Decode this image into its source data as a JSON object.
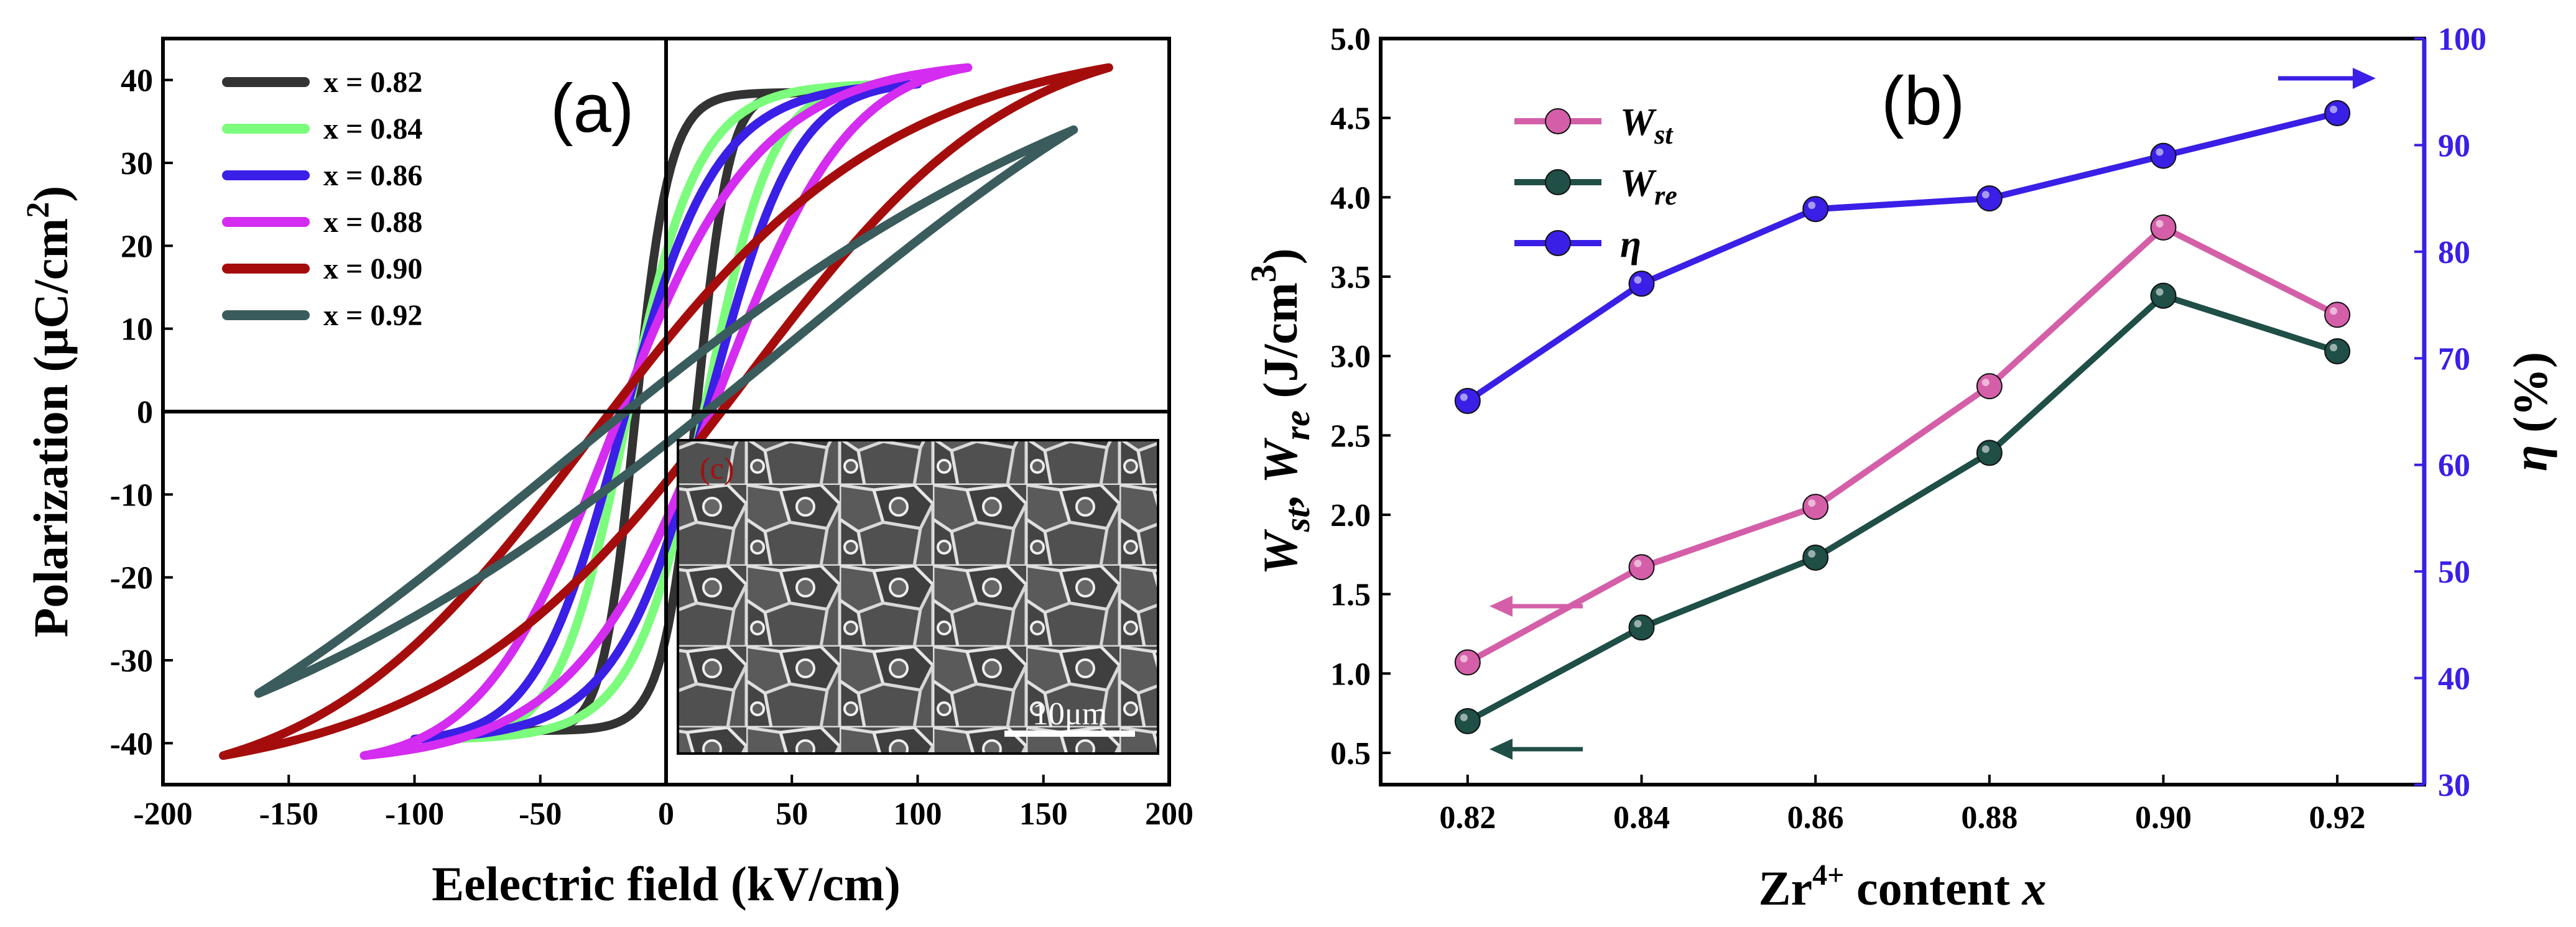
{
  "chart_data": [
    {
      "type": "line",
      "panel_label": "(a)",
      "xlabel": "Eelectric field (kV/cm)",
      "ylabel": "Polarization (μC/cm2)",
      "ylabel_main": "Polarization (μC/cm",
      "ylabel_sup": "2",
      "ylabel_end": ")",
      "xlim": [
        -200,
        200
      ],
      "ylim": [
        -45,
        45
      ],
      "xticks": [
        -200,
        -150,
        -100,
        -50,
        0,
        50,
        100,
        150,
        200
      ],
      "yticks": [
        -40,
        -30,
        -20,
        -10,
        0,
        10,
        20,
        30,
        40
      ],
      "legend_position": "top-left",
      "series": [
        {
          "name": "x = 0.82",
          "color": "#333333",
          "emax": 60,
          "pmax": 38.5,
          "w": 12,
          "sigma": 0.22
        },
        {
          "name": "x = 0.84",
          "color": "#7cfc7c",
          "emax": 92,
          "pmax": 39.5,
          "w": 15,
          "sigma": 0.3
        },
        {
          "name": "x = 0.86",
          "color": "#3a1fe6",
          "emax": 100,
          "pmax": 39.5,
          "w": 16,
          "sigma": 0.36
        },
        {
          "name": "x = 0.88",
          "color": "#d42cf0",
          "emax": 120,
          "pmax": 41.5,
          "w": 18,
          "sigma": 0.46
        },
        {
          "name": "x = 0.90",
          "color": "#a50d0d",
          "emax": 176,
          "pmax": 41.5,
          "w": 22,
          "sigma": 0.65
        },
        {
          "name": "x = 0.92",
          "color": "#3b5c5c",
          "emax": 162,
          "pmax": 34.0,
          "w": 16,
          "sigma": 1.4
        }
      ],
      "inset": {
        "type": "SEM micrograph",
        "label": "(c)",
        "scale_bar": "10μm"
      }
    },
    {
      "type": "line",
      "panel_label": "(b)",
      "xlabel": "Zr4+ content x",
      "xlabel_main": "Zr",
      "xlabel_sup": "4+",
      "xlabel_rest": " content ",
      "xlabel_var": "x",
      "ylabel_left": "Wst, Wre (J/cm3)",
      "ylabel_right": "η (%)",
      "ylabel_right_sym": "η",
      "ylabel_right_unit": " (%)",
      "categories": [
        0.82,
        0.84,
        0.86,
        0.88,
        0.9,
        0.92
      ],
      "xtick_labels": [
        "0.82",
        "0.84",
        "0.86",
        "0.88",
        "0.90",
        "0.92"
      ],
      "xlim": [
        0.81,
        0.93
      ],
      "ylim_left": [
        0.3,
        5.0
      ],
      "yticks_left": [
        "0.5",
        "1.0",
        "1.5",
        "2.0",
        "2.5",
        "3.0",
        "3.5",
        "4.0",
        "4.5",
        "5.0"
      ],
      "ylim_right": [
        30,
        100
      ],
      "yticks_right": [
        "30",
        "40",
        "50",
        "60",
        "70",
        "80",
        "90",
        "100"
      ],
      "legend_position": "top-left",
      "series": [
        {
          "name": "Wst",
          "base": "W",
          "sub": "st",
          "axis": "left",
          "color": "#d45fa8",
          "values": [
            1.07,
            1.67,
            2.05,
            2.81,
            3.81,
            3.26
          ]
        },
        {
          "name": "Wre",
          "base": "W",
          "sub": "re",
          "axis": "left",
          "color": "#1f4f47",
          "values": [
            0.7,
            1.29,
            1.73,
            2.39,
            3.38,
            3.03
          ]
        },
        {
          "name": "η",
          "base": "η",
          "sub": "",
          "axis": "right",
          "color": "#3a1fe6",
          "values": [
            66,
            77,
            84,
            85,
            89,
            93
          ]
        }
      ]
    }
  ]
}
